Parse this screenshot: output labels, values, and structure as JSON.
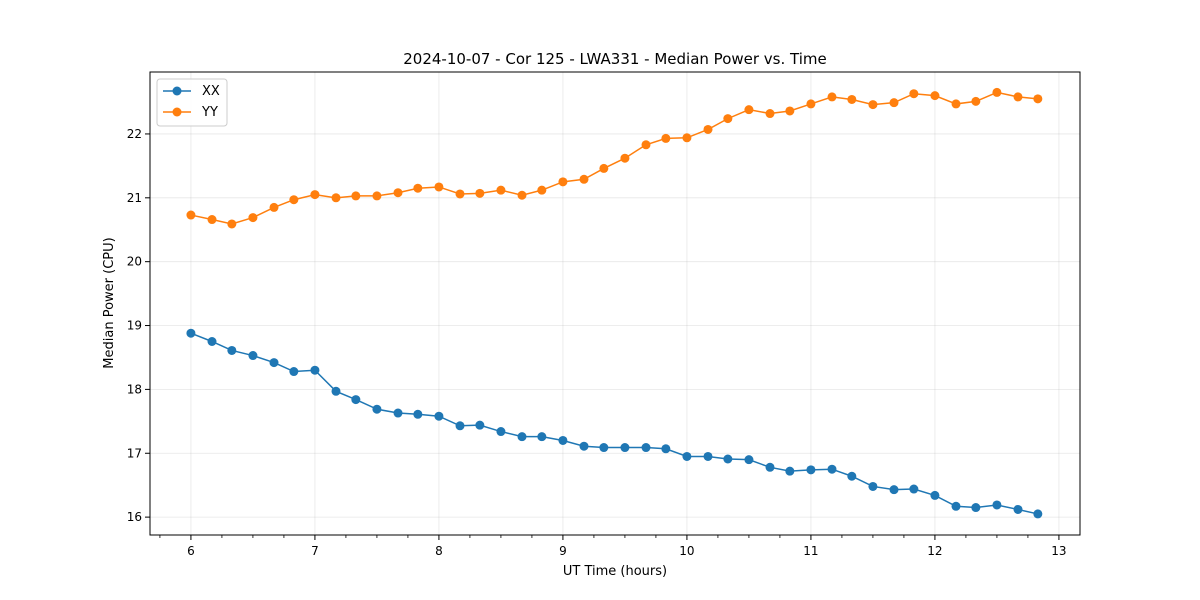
{
  "chart_data": {
    "type": "line",
    "title": "2024-10-07 - Cor 125 - LWA331 - Median Power vs. Time",
    "xlabel": "UT Time (hours)",
    "ylabel": "Median Power (CPU)",
    "xlim": [
      5.67,
      13.17
    ],
    "ylim": [
      15.72,
      22.97
    ],
    "x_ticks": [
      6,
      7,
      8,
      9,
      10,
      11,
      12,
      13
    ],
    "y_ticks": [
      16,
      17,
      18,
      19,
      20,
      21,
      22
    ],
    "grid": true,
    "legend_position": "top-left",
    "x": [
      6.0,
      6.17,
      6.33,
      6.5,
      6.67,
      6.83,
      7.0,
      7.17,
      7.33,
      7.5,
      7.67,
      7.83,
      8.0,
      8.17,
      8.33,
      8.5,
      8.67,
      8.83,
      9.0,
      9.17,
      9.33,
      9.5,
      9.67,
      9.83,
      10.0,
      10.17,
      10.33,
      10.5,
      10.67,
      10.83,
      11.0,
      11.17,
      11.33,
      11.5,
      11.67,
      11.83,
      12.0,
      12.17,
      12.33,
      12.5,
      12.67,
      12.83
    ],
    "series": [
      {
        "name": "XX",
        "color": "#1f77b4",
        "values": [
          18.88,
          18.75,
          18.61,
          18.53,
          18.42,
          18.28,
          18.3,
          17.97,
          17.84,
          17.69,
          17.63,
          17.61,
          17.58,
          17.43,
          17.44,
          17.34,
          17.26,
          17.26,
          17.2,
          17.11,
          17.09,
          17.09,
          17.09,
          17.07,
          16.95,
          16.95,
          16.91,
          16.9,
          16.78,
          16.72,
          16.74,
          16.75,
          16.64,
          16.48,
          16.43,
          16.44,
          16.34,
          16.17,
          16.15,
          16.19,
          16.12,
          16.05
        ]
      },
      {
        "name": "YY",
        "color": "#ff7f0e",
        "values": [
          20.73,
          20.66,
          20.59,
          20.69,
          20.85,
          20.97,
          21.05,
          21.0,
          21.03,
          21.03,
          21.08,
          21.15,
          21.17,
          21.06,
          21.07,
          21.12,
          21.04,
          21.12,
          21.25,
          21.29,
          21.46,
          21.62,
          21.83,
          21.93,
          21.94,
          22.07,
          22.24,
          22.38,
          22.32,
          22.36,
          22.47,
          22.58,
          22.54,
          22.46,
          22.49,
          22.63,
          22.6,
          22.47,
          22.51,
          22.65,
          22.58,
          22.55
        ]
      }
    ]
  }
}
